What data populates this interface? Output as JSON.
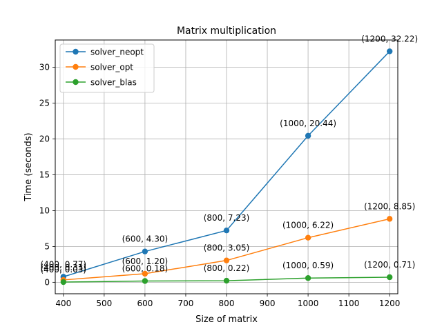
{
  "chart_data": {
    "type": "line",
    "title": "Matrix multiplication",
    "xlabel": "Size of matrix",
    "ylabel": "Time (seconds)",
    "xlim": [
      380,
      1220
    ],
    "ylim": [
      -1.6,
      33.8
    ],
    "xticks": [
      400,
      500,
      600,
      700,
      800,
      900,
      1000,
      1100,
      1200
    ],
    "yticks": [
      0,
      5,
      10,
      15,
      20,
      25,
      30
    ],
    "grid": true,
    "legend_position": "top-left",
    "x": [
      400,
      600,
      800,
      1000,
      1200
    ],
    "series": [
      {
        "name": "solver_neopt",
        "color": "#1f77b4",
        "values": [
          0.77,
          4.3,
          7.23,
          20.44,
          32.22
        ],
        "labels": [
          "(400, 0.77)",
          "(600, 4.30)",
          "(800, 7.23)",
          "(1000, 20.44)",
          "(1200, 32.22)"
        ]
      },
      {
        "name": "solver_opt",
        "color": "#ff7f0e",
        "values": [
          0.33,
          1.2,
          3.05,
          6.22,
          8.85
        ],
        "labels": [
          "(400, 0.33)",
          "(600, 1.20)",
          "(800, 3.05)",
          "(1000, 6.22)",
          "(1200, 8.85)"
        ]
      },
      {
        "name": "solver_blas",
        "color": "#2ca02c",
        "values": [
          0.03,
          0.18,
          0.22,
          0.59,
          0.71
        ],
        "labels": [
          "(400, 0.03)",
          "(600, 0.18)",
          "(800, 0.22)",
          "(1000, 0.59)",
          "(1200, 0.71)"
        ]
      }
    ]
  }
}
